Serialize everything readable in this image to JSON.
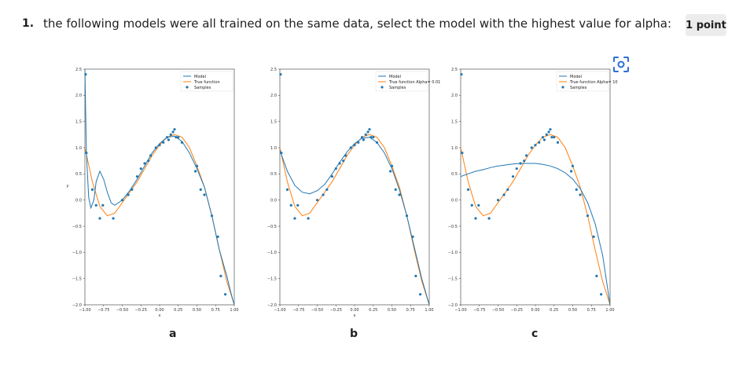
{
  "question": {
    "number": "1.",
    "text": "the following models were all trained on the same data, select the model with the highest value for alpha:",
    "points": "1 point"
  },
  "icons": {
    "scan": "scan-icon"
  },
  "colors": {
    "model": "#1f77b4",
    "true_function": "#ff7f0e",
    "samples": "#1f77b4"
  },
  "options": [
    {
      "label": "a",
      "legend": [
        "Model",
        "True function",
        "Samples"
      ]
    },
    {
      "label": "b",
      "legend": [
        "Model",
        "True function Alpha= 0.01",
        "Samples"
      ]
    },
    {
      "label": "c",
      "legend": [
        "Model",
        "True function Alpha= 10",
        "Samples"
      ]
    }
  ],
  "chart_data": [
    {
      "type": "line",
      "xlabel": "x",
      "ylabel": "y",
      "xlim": [
        -1.0,
        1.0
      ],
      "ylim": [
        -2.0,
        2.5
      ],
      "xticks": [
        "−1.00",
        "−0.75",
        "−0.50",
        "−0.25",
        "0.00",
        "0.25",
        "0.50",
        "0.75",
        "1.00"
      ],
      "yticks": [
        "2.5",
        "2.0",
        "1.5",
        "1.0",
        "0.5",
        "0.0",
        "−0.5",
        "−1.0",
        "−1.5",
        "−2.0"
      ],
      "legend_position": "top-right",
      "series": [
        {
          "name": "Model",
          "x": [
            -1.0,
            -0.98,
            -0.95,
            -0.92,
            -0.88,
            -0.85,
            -0.8,
            -0.75,
            -0.7,
            -0.65,
            -0.6,
            -0.55,
            -0.5,
            -0.4,
            -0.3,
            -0.2,
            -0.1,
            0.0,
            0.1,
            0.2,
            0.3,
            0.4,
            0.5,
            0.6,
            0.7,
            0.8,
            0.9,
            0.95,
            1.0
          ],
          "y": [
            2.5,
            0.9,
            0.05,
            -0.15,
            0.0,
            0.35,
            0.55,
            0.4,
            0.15,
            -0.05,
            -0.1,
            -0.05,
            0.0,
            0.18,
            0.4,
            0.65,
            0.9,
            1.08,
            1.2,
            1.22,
            1.12,
            0.9,
            0.6,
            0.25,
            -0.3,
            -0.95,
            -1.45,
            -1.75,
            -2.0
          ]
        },
        {
          "name": "True function",
          "x": [
            -1.0,
            -0.9,
            -0.8,
            -0.7,
            -0.6,
            -0.5,
            -0.4,
            -0.3,
            -0.2,
            -0.1,
            0.0,
            0.1,
            0.2,
            0.3,
            0.4,
            0.5,
            0.6,
            0.7,
            0.8,
            0.9,
            1.0
          ],
          "y": [
            1.0,
            0.35,
            -0.12,
            -0.3,
            -0.25,
            -0.05,
            0.15,
            0.35,
            0.6,
            0.85,
            1.05,
            1.2,
            1.25,
            1.2,
            1.0,
            0.65,
            0.25,
            -0.3,
            -0.95,
            -1.55,
            -2.0
          ]
        },
        {
          "name": "Samples",
          "x": [
            -0.99,
            -0.98,
            -0.9,
            -0.85,
            -0.8,
            -0.76,
            -0.62,
            -0.5,
            -0.42,
            -0.37,
            -0.3,
            -0.25,
            -0.2,
            -0.15,
            -0.12,
            -0.05,
            0.0,
            0.05,
            0.1,
            0.12,
            0.15,
            0.18,
            0.2,
            0.22,
            0.25,
            0.3,
            0.48,
            0.5,
            0.55,
            0.6,
            0.7,
            0.78,
            0.82,
            0.88
          ],
          "y": [
            2.4,
            0.9,
            0.2,
            -0.1,
            -0.35,
            -0.1,
            -0.35,
            0.0,
            0.1,
            0.2,
            0.45,
            0.6,
            0.7,
            0.75,
            0.85,
            1.0,
            1.05,
            1.1,
            1.2,
            1.15,
            1.25,
            1.3,
            1.35,
            1.2,
            1.2,
            1.1,
            0.55,
            0.65,
            0.2,
            0.1,
            -0.3,
            -0.7,
            -1.45,
            -1.8
          ]
        }
      ]
    },
    {
      "type": "line",
      "xlabel": "x",
      "ylabel": "",
      "xlim": [
        -1.0,
        1.0
      ],
      "ylim": [
        -2.0,
        2.5
      ],
      "xticks": [
        "−1.00",
        "−0.75",
        "−0.50",
        "−0.25",
        "0.00",
        "0.25",
        "0.50",
        "0.75",
        "1.00"
      ],
      "yticks": [
        "2.5",
        "2.0",
        "1.5",
        "1.0",
        "0.5",
        "0.0",
        "−0.5",
        "−1.0",
        "−1.5",
        "−2.0"
      ],
      "legend_position": "top-right",
      "series": [
        {
          "name": "Model",
          "x": [
            -1.0,
            -0.9,
            -0.8,
            -0.7,
            -0.6,
            -0.5,
            -0.4,
            -0.3,
            -0.2,
            -0.1,
            0.0,
            0.1,
            0.2,
            0.3,
            0.4,
            0.5,
            0.6,
            0.7,
            0.8,
            0.9,
            1.0
          ],
          "y": [
            0.95,
            0.55,
            0.28,
            0.15,
            0.12,
            0.18,
            0.3,
            0.5,
            0.72,
            0.92,
            1.08,
            1.18,
            1.2,
            1.1,
            0.9,
            0.6,
            0.2,
            -0.3,
            -0.9,
            -1.5,
            -2.0
          ]
        },
        {
          "name": "True function Alpha= 0.01",
          "x": [
            -1.0,
            -0.9,
            -0.8,
            -0.7,
            -0.6,
            -0.5,
            -0.4,
            -0.3,
            -0.2,
            -0.1,
            0.0,
            0.1,
            0.2,
            0.3,
            0.4,
            0.5,
            0.6,
            0.7,
            0.8,
            0.9,
            1.0
          ],
          "y": [
            1.0,
            0.35,
            -0.12,
            -0.3,
            -0.25,
            -0.05,
            0.15,
            0.35,
            0.6,
            0.85,
            1.05,
            1.2,
            1.25,
            1.2,
            1.0,
            0.65,
            0.25,
            -0.3,
            -0.95,
            -1.55,
            -2.0
          ]
        },
        {
          "name": "Samples",
          "x": [
            -0.99,
            -0.98,
            -0.9,
            -0.85,
            -0.8,
            -0.76,
            -0.62,
            -0.5,
            -0.42,
            -0.37,
            -0.3,
            -0.25,
            -0.2,
            -0.15,
            -0.12,
            -0.05,
            0.0,
            0.05,
            0.1,
            0.12,
            0.15,
            0.18,
            0.2,
            0.22,
            0.25,
            0.3,
            0.48,
            0.5,
            0.55,
            0.6,
            0.7,
            0.78,
            0.82,
            0.88
          ],
          "y": [
            2.4,
            0.9,
            0.2,
            -0.1,
            -0.35,
            -0.1,
            -0.35,
            0.0,
            0.1,
            0.2,
            0.45,
            0.6,
            0.7,
            0.75,
            0.85,
            1.0,
            1.05,
            1.1,
            1.2,
            1.15,
            1.25,
            1.3,
            1.35,
            1.2,
            1.2,
            1.1,
            0.55,
            0.65,
            0.2,
            0.1,
            -0.3,
            -0.7,
            -1.45,
            -1.8
          ]
        }
      ]
    },
    {
      "type": "line",
      "xlabel": "",
      "ylabel": "",
      "xlim": [
        -1.0,
        1.0
      ],
      "ylim": [
        -2.0,
        2.5
      ],
      "xticks": [
        "−1.00",
        "−0.75",
        "−0.50",
        "−0.25",
        "0.00",
        "0.25",
        "0.50",
        "0.75",
        "1.00"
      ],
      "yticks": [
        "2.5",
        "2.0",
        "1.5",
        "1.0",
        "0.5",
        "0.0",
        "−0.5",
        "−1.0",
        "−1.5",
        "−2.0"
      ],
      "legend_position": "top-right",
      "series": [
        {
          "name": "Model",
          "x": [
            -1.0,
            -0.9,
            -0.8,
            -0.7,
            -0.6,
            -0.5,
            -0.4,
            -0.3,
            -0.2,
            -0.1,
            0.0,
            0.1,
            0.2,
            0.3,
            0.4,
            0.5,
            0.6,
            0.7,
            0.8,
            0.9,
            1.0
          ],
          "y": [
            0.45,
            0.5,
            0.55,
            0.58,
            0.62,
            0.65,
            0.67,
            0.69,
            0.7,
            0.7,
            0.7,
            0.68,
            0.65,
            0.6,
            0.52,
            0.4,
            0.22,
            -0.05,
            -0.45,
            -1.05,
            -2.0
          ]
        },
        {
          "name": "True function Alpha= 10",
          "x": [
            -1.0,
            -0.9,
            -0.8,
            -0.7,
            -0.6,
            -0.5,
            -0.4,
            -0.3,
            -0.2,
            -0.1,
            0.0,
            0.1,
            0.2,
            0.3,
            0.4,
            0.5,
            0.6,
            0.7,
            0.8,
            0.9,
            1.0
          ],
          "y": [
            1.0,
            0.35,
            -0.12,
            -0.3,
            -0.25,
            -0.05,
            0.15,
            0.35,
            0.6,
            0.85,
            1.05,
            1.2,
            1.25,
            1.2,
            1.0,
            0.65,
            0.25,
            -0.3,
            -0.95,
            -1.55,
            -2.0
          ]
        },
        {
          "name": "Samples",
          "x": [
            -0.99,
            -0.98,
            -0.9,
            -0.85,
            -0.8,
            -0.76,
            -0.62,
            -0.5,
            -0.42,
            -0.37,
            -0.3,
            -0.25,
            -0.2,
            -0.15,
            -0.12,
            -0.05,
            0.0,
            0.05,
            0.1,
            0.12,
            0.15,
            0.18,
            0.2,
            0.22,
            0.25,
            0.3,
            0.48,
            0.5,
            0.55,
            0.6,
            0.7,
            0.78,
            0.82,
            0.88
          ],
          "y": [
            2.4,
            0.9,
            0.2,
            -0.1,
            -0.35,
            -0.1,
            -0.35,
            0.0,
            0.1,
            0.2,
            0.45,
            0.6,
            0.7,
            0.75,
            0.85,
            1.0,
            1.05,
            1.1,
            1.2,
            1.15,
            1.25,
            1.3,
            1.35,
            1.2,
            1.2,
            1.1,
            0.55,
            0.65,
            0.2,
            0.1,
            -0.3,
            -0.7,
            -1.45,
            -1.8
          ]
        }
      ]
    }
  ]
}
